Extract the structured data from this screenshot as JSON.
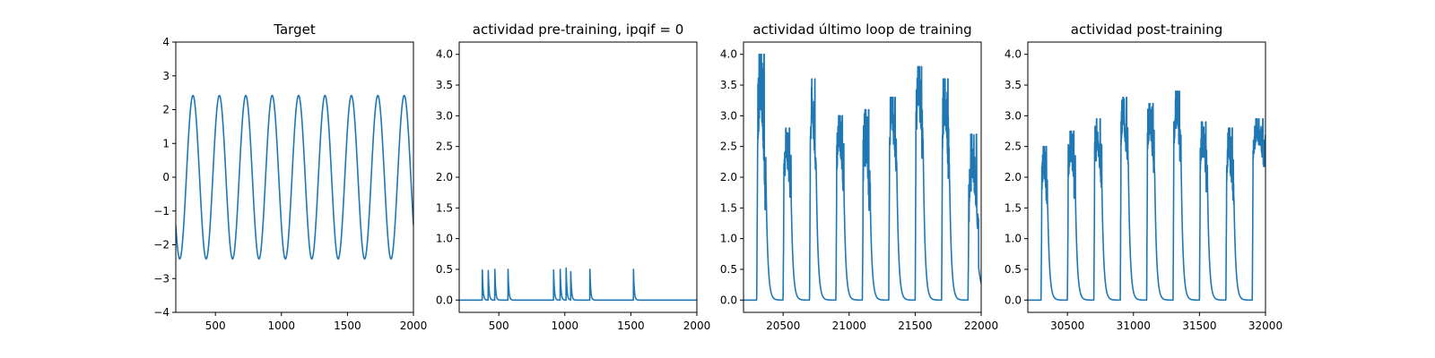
{
  "figure": {
    "background": "#ffffff",
    "line_color": "#1f77b4"
  },
  "chart_data": [
    {
      "type": "line",
      "title": "Target",
      "xlim": [
        200,
        2000
      ],
      "ylim": [
        -4,
        4
      ],
      "xticks": [
        500,
        1000,
        1500,
        2000
      ],
      "yticks": [
        -4,
        -3,
        -2,
        -1,
        0,
        1,
        2,
        3,
        4
      ],
      "series": [
        {
          "kind": "sine",
          "amplitude": 2.42,
          "period": 200,
          "peak_x": 330,
          "x_start": 200,
          "x_end": 2000
        }
      ]
    },
    {
      "type": "line",
      "title": "actividad pre-training, ipqif = 0",
      "xlim": [
        200,
        2000
      ],
      "ylim": [
        -0.2,
        4.2
      ],
      "xticks": [
        500,
        1000,
        1500,
        2000
      ],
      "yticks": [
        0.0,
        0.5,
        1.0,
        1.5,
        2.0,
        2.5,
        3.0,
        3.5,
        4.0
      ],
      "series": [
        {
          "kind": "spikes",
          "x_start": 200,
          "x_end": 2000,
          "decay": 6,
          "spike_times": [
            375,
            420,
            470,
            570,
            915,
            965,
            1010,
            1045,
            1190,
            1520
          ],
          "spike_heights": [
            0.49,
            0.48,
            0.5,
            0.5,
            0.49,
            0.5,
            0.52,
            0.46,
            0.5,
            0.5
          ]
        }
      ]
    },
    {
      "type": "line",
      "title": "actividad último loop de training",
      "xlim": [
        20200,
        22000
      ],
      "ylim": [
        -0.2,
        4.2
      ],
      "xticks": [
        20500,
        21000,
        21500,
        22000
      ],
      "yticks": [
        0.0,
        0.5,
        1.0,
        1.5,
        2.0,
        2.5,
        3.0,
        3.5,
        4.0
      ],
      "series": [
        {
          "kind": "bursts",
          "x_start": 20200,
          "x_end": 22000,
          "burst_start": [
            20300,
            20500,
            20700,
            20900,
            21100,
            21300,
            21500,
            21700,
            21900
          ],
          "burst_end": [
            20370,
            20560,
            20750,
            20960,
            21160,
            21360,
            21560,
            21760,
            21980
          ],
          "burst_peak": [
            4.0,
            2.8,
            3.6,
            3.0,
            3.1,
            3.3,
            3.8,
            3.6,
            2.7
          ],
          "burst_min": [
            2.0,
            1.8,
            2.2,
            1.9,
            1.6,
            2.3,
            2.6,
            2.1,
            1.3
          ],
          "end_value": 0.55
        }
      ]
    },
    {
      "type": "line",
      "title": "actividad post-training",
      "xlim": [
        30200,
        32000
      ],
      "ylim": [
        -0.2,
        4.2
      ],
      "xticks": [
        30500,
        31000,
        31500,
        32000
      ],
      "yticks": [
        0.0,
        0.5,
        1.0,
        1.5,
        2.0,
        2.5,
        3.0,
        3.5,
        4.0
      ],
      "series": [
        {
          "kind": "bursts",
          "x_start": 30200,
          "x_end": 32000,
          "burst_start": [
            30300,
            30500,
            30700,
            30900,
            31100,
            31300,
            31500,
            31700,
            31900
          ],
          "burst_end": [
            30350,
            30560,
            30760,
            30960,
            31160,
            31360,
            31560,
            31760,
            32000
          ],
          "burst_peak": [
            2.5,
            2.75,
            2.95,
            3.3,
            3.2,
            3.4,
            2.9,
            2.8,
            2.95
          ],
          "burst_min": [
            1.6,
            1.8,
            2.0,
            2.4,
            2.2,
            2.4,
            2.0,
            1.8,
            2.3
          ],
          "end_value": 2.4
        }
      ]
    }
  ]
}
